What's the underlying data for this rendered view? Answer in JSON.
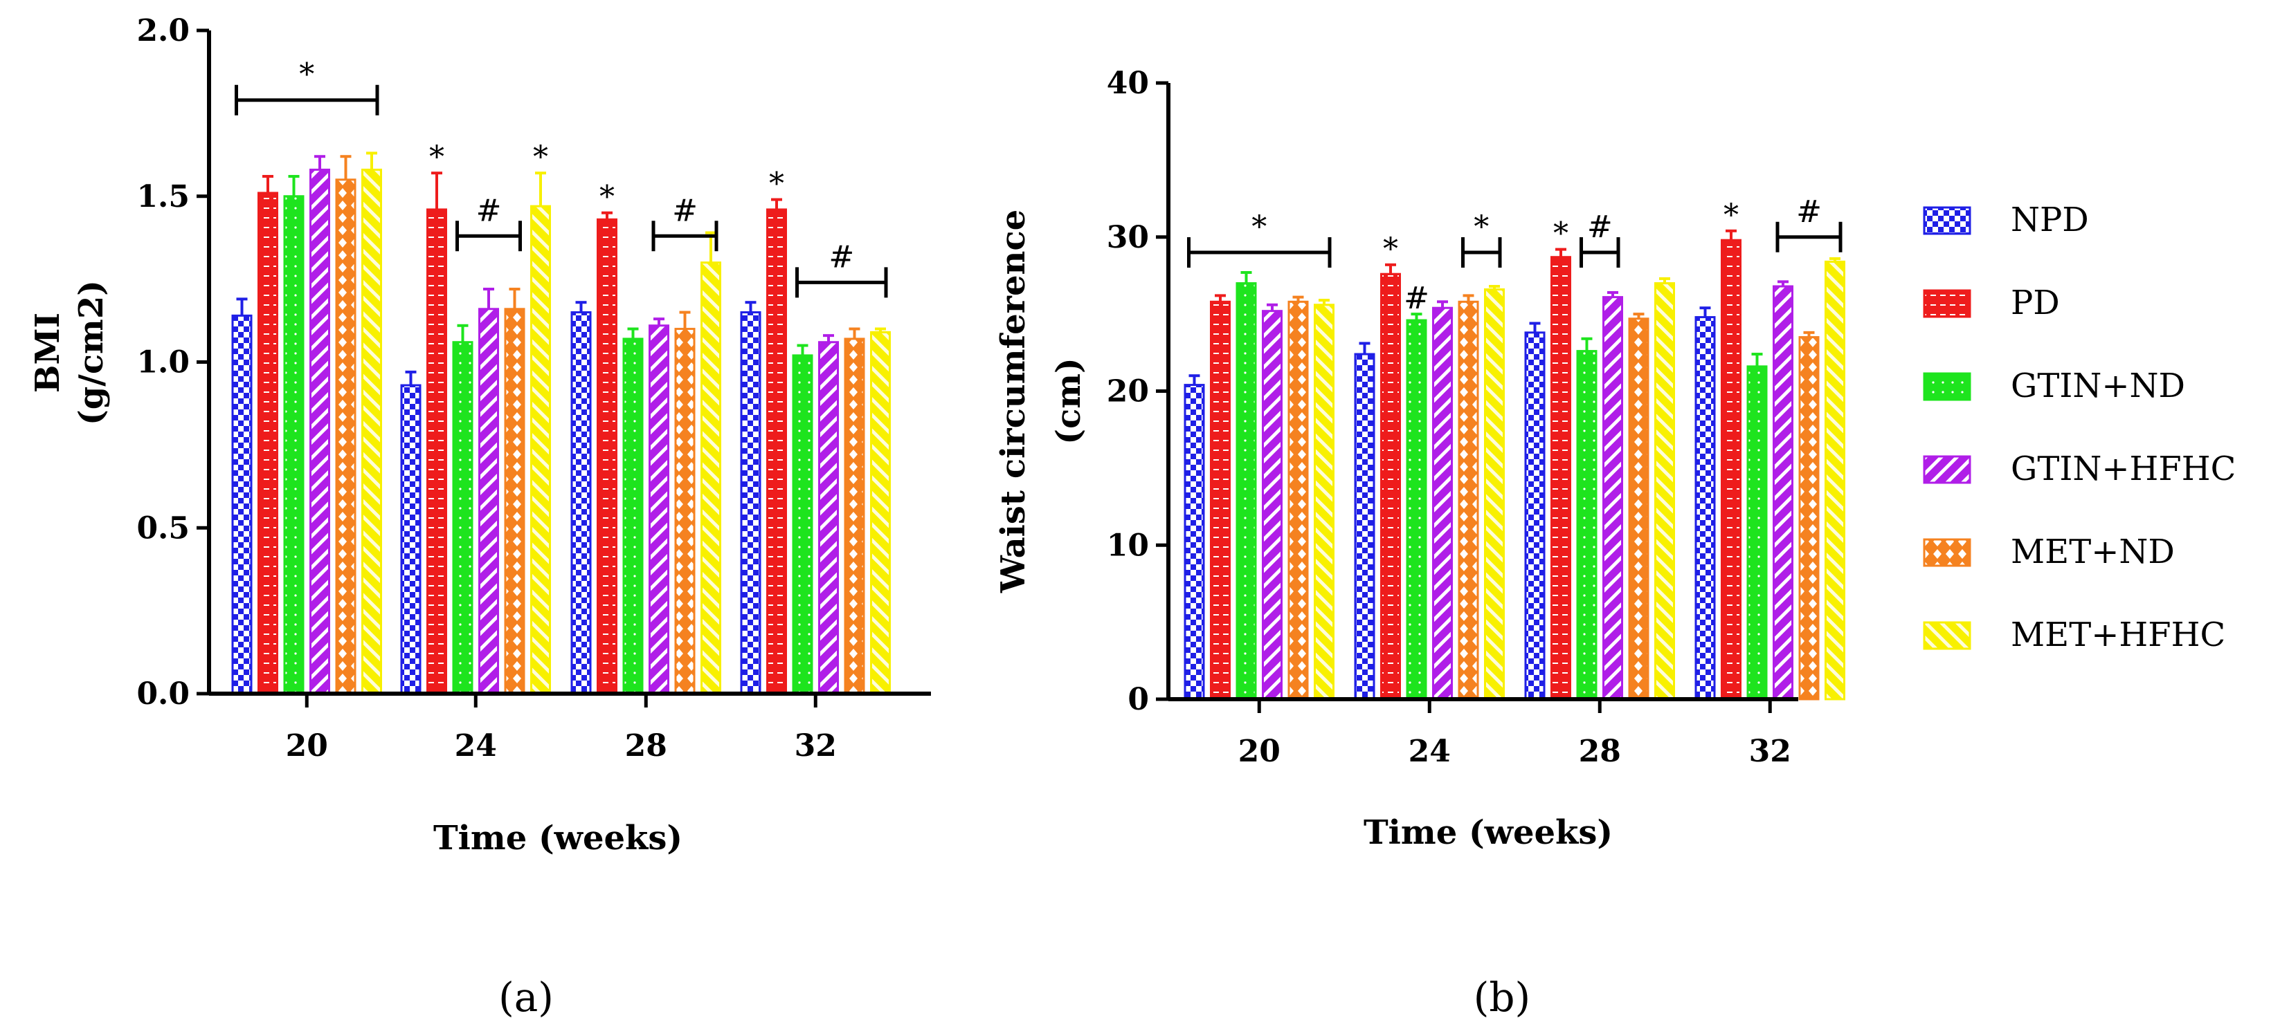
{
  "chart_data": [
    {
      "panel": "a",
      "panel_label": "(a)",
      "type": "bar",
      "categories": [
        "20",
        "24",
        "28",
        "32"
      ],
      "series": [
        {
          "name": "NPD",
          "values": [
            1.14,
            0.93,
            1.15,
            1.15
          ],
          "errors": [
            0.05,
            0.04,
            0.03,
            0.03
          ]
        },
        {
          "name": "PD",
          "values": [
            1.51,
            1.46,
            1.43,
            1.46
          ],
          "errors": [
            0.05,
            0.11,
            0.02,
            0.03
          ]
        },
        {
          "name": "GTIN+ND",
          "values": [
            1.5,
            1.06,
            1.07,
            1.02
          ],
          "errors": [
            0.06,
            0.05,
            0.03,
            0.03
          ]
        },
        {
          "name": "GTIN+HFHC",
          "values": [
            1.58,
            1.16,
            1.11,
            1.06
          ],
          "errors": [
            0.04,
            0.06,
            0.02,
            0.02
          ]
        },
        {
          "name": "MET+ND",
          "values": [
            1.55,
            1.16,
            1.1,
            1.07
          ],
          "errors": [
            0.07,
            0.06,
            0.05,
            0.03
          ]
        },
        {
          "name": "MET+HFHC",
          "values": [
            1.58,
            1.47,
            1.3,
            1.09
          ],
          "errors": [
            0.05,
            0.1,
            0.09,
            0.01
          ]
        }
      ],
      "ylabel": [
        "BMI",
        "(g/cm2)"
      ],
      "xlabel": "Time (weeks)",
      "ylim": [
        0.0,
        2.0
      ],
      "yticks": [
        "0.0",
        "0.5",
        "1.0",
        "1.5",
        "2.0"
      ],
      "annotations": [
        {
          "group": 0,
          "from": 0,
          "to": 5,
          "text": "*",
          "y": 1.79,
          "type": "bracket"
        },
        {
          "group": 1,
          "series": 1,
          "text": "*",
          "type": "star"
        },
        {
          "group": 1,
          "from": 2,
          "to": 4,
          "text": "#",
          "y": 1.38,
          "type": "bracket"
        },
        {
          "group": 1,
          "series": 5,
          "text": "*",
          "type": "star"
        },
        {
          "group": 2,
          "series": 1,
          "text": "*",
          "type": "star"
        },
        {
          "group": 2,
          "from": 3,
          "to": 5,
          "text": "#",
          "y": 1.38,
          "type": "bracket"
        },
        {
          "group": 3,
          "series": 1,
          "text": "*",
          "type": "star"
        },
        {
          "group": 3,
          "from": 2,
          "to": 5,
          "text": "#",
          "y": 1.24,
          "type": "bracket"
        }
      ]
    },
    {
      "panel": "b",
      "panel_label": "(b)",
      "type": "bar",
      "categories": [
        "20",
        "24",
        "28",
        "32"
      ],
      "series": [
        {
          "name": "NPD",
          "values": [
            20.4,
            22.4,
            23.8,
            24.8
          ],
          "errors": [
            0.6,
            0.7,
            0.6,
            0.6
          ]
        },
        {
          "name": "PD",
          "values": [
            25.8,
            27.6,
            28.7,
            29.8
          ],
          "errors": [
            0.4,
            0.6,
            0.5,
            0.6
          ]
        },
        {
          "name": "GTIN+ND",
          "values": [
            27.0,
            24.6,
            22.6,
            21.6
          ],
          "errors": [
            0.7,
            0.4,
            0.8,
            0.8
          ]
        },
        {
          "name": "GTIN+HFHC",
          "values": [
            25.2,
            25.4,
            26.1,
            26.8
          ],
          "errors": [
            0.4,
            0.4,
            0.3,
            0.3
          ]
        },
        {
          "name": "MET+ND",
          "values": [
            25.8,
            25.8,
            24.7,
            23.5
          ],
          "errors": [
            0.3,
            0.4,
            0.3,
            0.3
          ]
        },
        {
          "name": "MET+HFHC",
          "values": [
            25.6,
            26.6,
            27.0,
            28.4
          ],
          "errors": [
            0.3,
            0.2,
            0.3,
            0.2
          ]
        }
      ],
      "ylabel": [
        "Waist circumference",
        "(cm)"
      ],
      "xlabel": "Time (weeks)",
      "ylim": [
        0,
        40
      ],
      "yticks": [
        "0",
        "10",
        "20",
        "30",
        "40"
      ],
      "annotations": [
        {
          "group": 0,
          "from": 0,
          "to": 5,
          "text": "*",
          "y": 29.0,
          "type": "bracket"
        },
        {
          "group": 1,
          "series": 1,
          "text": "*",
          "type": "star"
        },
        {
          "group": 1,
          "series": 2,
          "text": "#",
          "type": "star"
        },
        {
          "group": 1,
          "from": 4,
          "to": 5,
          "text": "*",
          "y": 29.0,
          "type": "bracket"
        },
        {
          "group": 2,
          "series": 1,
          "text": "*",
          "type": "star"
        },
        {
          "group": 2,
          "from": 2,
          "to": 3,
          "text": "#",
          "y": 29.0,
          "type": "bracket"
        },
        {
          "group": 3,
          "series": 1,
          "text": "*",
          "type": "star"
        },
        {
          "group": 3,
          "from": 3,
          "to": 5,
          "text": "#",
          "y": 30.0,
          "type": "bracket"
        }
      ]
    }
  ],
  "legend": {
    "position": "right",
    "items": [
      {
        "name": "NPD",
        "color": "#1f1fe6",
        "pattern": "checker"
      },
      {
        "name": "PD",
        "color": "#ee1c1c",
        "pattern": "hlines"
      },
      {
        "name": "GTIN+ND",
        "color": "#1ee41e",
        "pattern": "dots"
      },
      {
        "name": "GTIN+HFHC",
        "color": "#b01ee8",
        "pattern": "diag"
      },
      {
        "name": "MET+ND",
        "color": "#f58220",
        "pattern": "wave"
      },
      {
        "name": "MET+HFHC",
        "color": "#f8f000",
        "pattern": "diag-light"
      }
    ]
  }
}
